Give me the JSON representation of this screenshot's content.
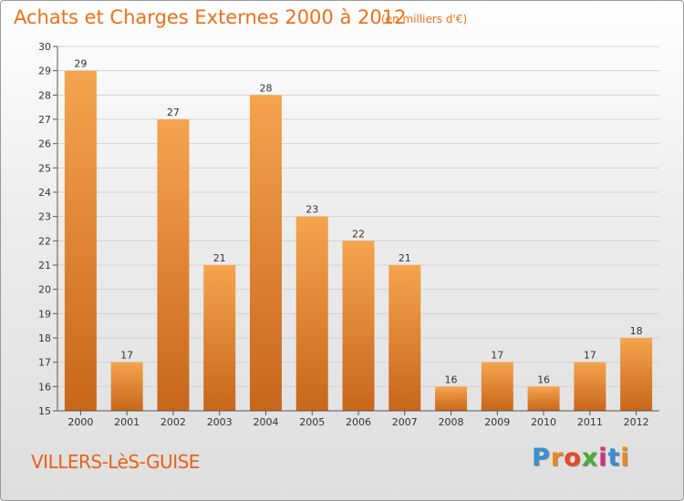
{
  "chart_data": {
    "type": "bar",
    "title": "Achats et Charges Externes 2000 à 2012",
    "subtitle": "(en milliers d'€)",
    "categories": [
      "2000",
      "2001",
      "2002",
      "2003",
      "2004",
      "2005",
      "2006",
      "2007",
      "2008",
      "2009",
      "2010",
      "2011",
      "2012"
    ],
    "values": [
      29,
      17,
      27,
      21,
      28,
      23,
      22,
      21,
      16,
      17,
      16,
      17,
      18
    ],
    "ylim": [
      15,
      30
    ],
    "yticks": [
      15,
      16,
      17,
      18,
      19,
      20,
      21,
      22,
      23,
      24,
      25,
      26,
      27,
      28,
      29,
      30
    ],
    "grid": true,
    "bar_colors": [
      "#c8661a",
      "#f5a44e"
    ],
    "xlabel": "",
    "ylabel": ""
  },
  "footer": {
    "town": "VILLERS-LèS-GUISE",
    "logo_text": "Proxiti",
    "logo_colors": [
      "#3b8fd1",
      "#e88a1e",
      "#e84a1e",
      "#4aab3a",
      "#d72f7a",
      "#3b8fd1",
      "#e88a1e"
    ]
  }
}
